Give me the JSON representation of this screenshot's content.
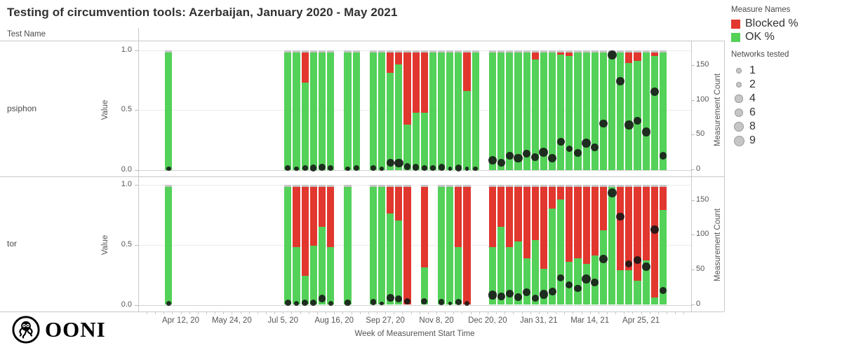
{
  "title": "Testing of circumvention tools: Azerbaijan, January 2020 - May 2021",
  "row_header": "Test Name",
  "panels": [
    {
      "label": "psiphon"
    },
    {
      "label": "tor"
    }
  ],
  "axes": {
    "value_label": "Value",
    "value_ticks": [
      "1.0",
      "0.5",
      "0.0"
    ],
    "count_label": "Measurement Count",
    "count_ticks": [
      "0",
      "50",
      "100",
      "150"
    ],
    "x_label": "Week of Measurement Start Time",
    "x_ticks": [
      {
        "label": "Apr 12, 20",
        "week": 0
      },
      {
        "label": "May 24, 20",
        "week": 6
      },
      {
        "label": "Jul 5, 20",
        "week": 12
      },
      {
        "label": "Aug 16, 20",
        "week": 18
      },
      {
        "label": "Sep 27, 20",
        "week": 24
      },
      {
        "label": "Nov 8, 20",
        "week": 30
      },
      {
        "label": "Dec 20, 20",
        "week": 36
      },
      {
        "label": "Jan 31, 21",
        "week": 42
      },
      {
        "label": "Mar 14, 21",
        "week": 48
      },
      {
        "label": "Apr 25, 21",
        "week": 54
      }
    ]
  },
  "legend": {
    "measures_title": "Measure Names",
    "measures": [
      {
        "label": "Blocked %",
        "color": "#e1372e"
      },
      {
        "label": "OK %",
        "color": "#53d158"
      }
    ],
    "networks_title": "Networks tested",
    "networks": [
      1,
      2,
      4,
      6,
      8,
      9
    ]
  },
  "logo_text": "OONI",
  "chart_data": {
    "type": "bar",
    "stacked": true,
    "title": "Testing of circumvention tools: Azerbaijan, January 2020 - May 2021",
    "xlabel": "Week of Measurement Start Time",
    "ylabel_left": "Value",
    "ylabel_right": "Measurement Count",
    "ylim_left": [
      0,
      1.0
    ],
    "ylim_right": [
      0,
      172
    ],
    "legend_position": "top-right",
    "grid": "horizontal-0.5-and-0",
    "colors": {
      "blocked": "#e1372e",
      "ok": "#53d158",
      "cap": "#c6c6c6",
      "dot": "#161616"
    },
    "columns": [
      "week_index_from_Apr12_20",
      "week",
      "blocked_pct",
      "ok_pct",
      "networks_tested",
      "measurement_count"
    ],
    "panels": [
      {
        "test": "psiphon",
        "bars": [
          [
            -2,
            "Mar 29, 20",
            0,
            0.98,
            2,
            1
          ],
          [
            12,
            "Jul 5, 20",
            0,
            0.98,
            3,
            2
          ],
          [
            13,
            "Jul 12, 20",
            0,
            0.98,
            2,
            1
          ],
          [
            14,
            "Jul 19, 20",
            0.25,
            0.73,
            3,
            2
          ],
          [
            15,
            "Jul 26, 20",
            0,
            0.98,
            4,
            2
          ],
          [
            16,
            "Aug 2, 20",
            0,
            0.98,
            6,
            3
          ],
          [
            17,
            "Aug 9, 20",
            0,
            0.98,
            3,
            2
          ],
          [
            19,
            "Aug 23, 20",
            0,
            0.98,
            2,
            1
          ],
          [
            20,
            "Aug 30, 20",
            0,
            0.98,
            3,
            2
          ],
          [
            22,
            "Sep 13, 20",
            0,
            0.98,
            3,
            2
          ],
          [
            23,
            "Sep 20, 20",
            0,
            0.98,
            1,
            1
          ],
          [
            24,
            "Sep 27, 20",
            0.17,
            0.81,
            6,
            10
          ],
          [
            25,
            "Oct 4, 20",
            0.1,
            0.88,
            8,
            9
          ],
          [
            26,
            "Oct 11, 20",
            0.6,
            0.38,
            4,
            4
          ],
          [
            27,
            "Oct 18, 20",
            0.5,
            0.48,
            4,
            3
          ],
          [
            28,
            "Oct 25, 20",
            0.5,
            0.48,
            3,
            2
          ],
          [
            29,
            "Nov 1, 20",
            0,
            0.98,
            3,
            2
          ],
          [
            30,
            "Nov 8, 20",
            0,
            0.98,
            4,
            3
          ],
          [
            31,
            "Nov 15, 20",
            0,
            0.98,
            1,
            1
          ],
          [
            32,
            "Nov 22, 20",
            0,
            0.98,
            4,
            2
          ],
          [
            33,
            "Nov 29, 20",
            0.32,
            0.66,
            1,
            1
          ],
          [
            34,
            "Dec 6, 20",
            0,
            0.98,
            2,
            1
          ],
          [
            36,
            "Dec 20, 20",
            0,
            0.98,
            8,
            13
          ],
          [
            37,
            "Dec 27, 20",
            0,
            0.98,
            6,
            10
          ],
          [
            38,
            "Jan 3, 21",
            0,
            0.98,
            6,
            20
          ],
          [
            39,
            "Jan 10, 21",
            0,
            0.98,
            8,
            16
          ],
          [
            40,
            "Jan 17, 21",
            0,
            0.98,
            6,
            23
          ],
          [
            41,
            "Jan 24, 21",
            0.06,
            0.92,
            6,
            18
          ],
          [
            42,
            "Jan 31, 21",
            0,
            0.98,
            9,
            25
          ],
          [
            43,
            "Feb 7, 21",
            0,
            0.98,
            8,
            16
          ],
          [
            44,
            "Feb 14, 21",
            0.02,
            0.96,
            6,
            40
          ],
          [
            45,
            "Feb 21, 21",
            0.03,
            0.95,
            4,
            30
          ],
          [
            46,
            "Feb 28, 21",
            0,
            0.98,
            6,
            24
          ],
          [
            47,
            "Mar 7, 21",
            0,
            0.98,
            9,
            38
          ],
          [
            48,
            "Mar 14, 21",
            0,
            0.98,
            6,
            32
          ],
          [
            49,
            "Mar 21, 21",
            0,
            0.98,
            7,
            66
          ],
          [
            50,
            "Mar 28, 21",
            0,
            0.98,
            9,
            165
          ],
          [
            51,
            "Apr 4, 21",
            0,
            0.98,
            8,
            127
          ],
          [
            52,
            "Apr 11, 21",
            0.09,
            0.89,
            8,
            64
          ],
          [
            53,
            "Apr 18, 21",
            0.07,
            0.91,
            6,
            70
          ],
          [
            54,
            "Apr 25, 21",
            0,
            0.98,
            8,
            54
          ],
          [
            55,
            "May 2, 21",
            0.03,
            0.95,
            8,
            112
          ],
          [
            56,
            "May 9, 21",
            0,
            0.98,
            6,
            20
          ]
        ]
      },
      {
        "test": "tor",
        "bars": [
          [
            -2,
            "Mar 29, 20",
            0,
            0.98,
            2,
            1
          ],
          [
            12,
            "Jul 5, 20",
            0,
            0.98,
            4,
            2
          ],
          [
            13,
            "Jul 12, 20",
            0.5,
            0.48,
            2,
            1
          ],
          [
            14,
            "Jul 19, 20",
            0.74,
            0.24,
            4,
            2
          ],
          [
            15,
            "Jul 26, 20",
            0.49,
            0.49,
            4,
            2
          ],
          [
            16,
            "Aug 2, 20",
            0.33,
            0.65,
            6,
            8
          ],
          [
            17,
            "Aug 9, 20",
            0.5,
            0.48,
            2,
            1
          ],
          [
            19,
            "Aug 23, 20",
            0,
            0.98,
            3,
            2
          ],
          [
            22,
            "Sep 13, 20",
            0,
            0.98,
            3,
            3
          ],
          [
            23,
            "Sep 20, 20",
            0,
            0.98,
            1,
            1
          ],
          [
            24,
            "Sep 27, 20",
            0.22,
            0.76,
            6,
            9
          ],
          [
            25,
            "Oct 4, 20",
            0.28,
            0.7,
            5,
            8
          ],
          [
            26,
            "Oct 11, 20",
            0.98,
            0,
            4,
            4
          ],
          [
            28,
            "Oct 25, 20",
            0.67,
            0.31,
            4,
            4
          ],
          [
            30,
            "Nov 8, 20",
            0,
            0.98,
            3,
            3
          ],
          [
            31,
            "Nov 15, 20",
            0,
            0.98,
            1,
            1
          ],
          [
            32,
            "Nov 22, 20",
            0.5,
            0.48,
            4,
            3
          ],
          [
            33,
            "Nov 29, 20",
            0.98,
            0,
            2,
            1
          ],
          [
            36,
            "Dec 20, 20",
            0.5,
            0.48,
            8,
            13
          ],
          [
            37,
            "Dec 27, 20",
            0.33,
            0.65,
            6,
            11
          ],
          [
            38,
            "Jan 3, 21",
            0.5,
            0.48,
            6,
            15
          ],
          [
            39,
            "Jan 10, 21",
            0.45,
            0.53,
            6,
            10
          ],
          [
            40,
            "Jan 17, 21",
            0.59,
            0.39,
            6,
            17
          ],
          [
            41,
            "Jan 24, 21",
            0.44,
            0.54,
            5,
            9
          ],
          [
            42,
            "Jan 31, 21",
            0.68,
            0.3,
            8,
            14
          ],
          [
            43,
            "Feb 7, 21",
            0.18,
            0.8,
            6,
            18
          ],
          [
            44,
            "Feb 14, 21",
            0.1,
            0.88,
            5,
            38
          ],
          [
            45,
            "Feb 21, 21",
            0.62,
            0.36,
            5,
            28
          ],
          [
            46,
            "Feb 28, 21",
            0.59,
            0.39,
            5,
            23
          ],
          [
            47,
            "Mar 7, 21",
            0.64,
            0.34,
            9,
            36
          ],
          [
            48,
            "Mar 14, 21",
            0.57,
            0.41,
            6,
            31
          ],
          [
            49,
            "Mar 21, 21",
            0.36,
            0.62,
            7,
            65
          ],
          [
            50,
            "Mar 28, 21",
            0,
            0.98,
            9,
            160
          ],
          [
            51,
            "Apr 4, 21",
            0.69,
            0.29,
            7,
            126
          ],
          [
            52,
            "Apr 11, 21",
            0.69,
            0.29,
            5,
            58
          ],
          [
            53,
            "Apr 18, 21",
            0.78,
            0.2,
            6,
            63
          ],
          [
            54,
            "Apr 25, 21",
            0.61,
            0.37,
            7,
            54
          ],
          [
            55,
            "May 2, 21",
            0.92,
            0.06,
            7,
            107
          ],
          [
            56,
            "May 9, 21",
            0.19,
            0.79,
            5,
            20
          ]
        ]
      }
    ]
  }
}
